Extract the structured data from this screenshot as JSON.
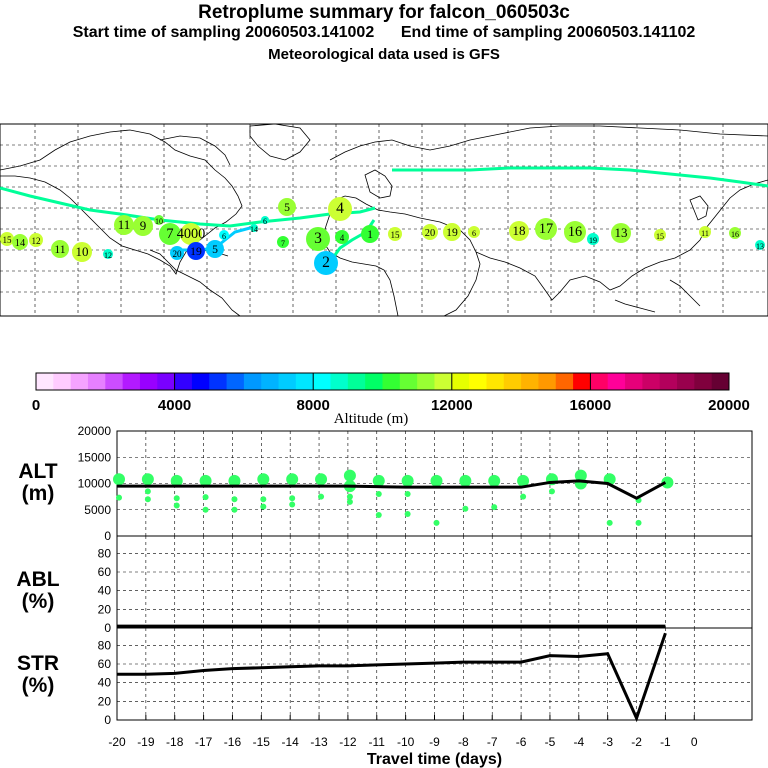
{
  "header": {
    "title": "Retroplume summary for falcon_060503c",
    "sampling": "Start time of sampling 20060503.141002      End time of sampling 20060503.141102",
    "met": "Meteorological data used is GFS"
  },
  "colorbar": {
    "label": "Altitude (m)",
    "ticks": [
      "0",
      "4000",
      "8000",
      "12000",
      "16000",
      "20000"
    ],
    "colors": [
      "#ffe6ff",
      "#ffccff",
      "#f5a3ff",
      "#e680ff",
      "#cc4dff",
      "#b31aff",
      "#9900ff",
      "#7a00ff",
      "#3300ff",
      "#0000ff",
      "#0033ff",
      "#0066ff",
      "#0099ff",
      "#00b3ff",
      "#00ccff",
      "#00e6ff",
      "#00ffff",
      "#00ffcc",
      "#00ff99",
      "#00ff66",
      "#33ff33",
      "#66ff33",
      "#99ff33",
      "#ccff33",
      "#e6ff00",
      "#ffff00",
      "#ffe600",
      "#ffcc00",
      "#ffb300",
      "#ff9900",
      "#ff6600",
      "#ff0000",
      "#ff0066",
      "#ff0099",
      "#e6007a",
      "#cc0066",
      "#b3005c",
      "#99004d",
      "#80003d",
      "#660033"
    ]
  },
  "chart_data": [
    {
      "type": "scatter",
      "panel": "ALT",
      "ylabel": "ALT (m)",
      "ylim": [
        0,
        20000
      ],
      "yticks": [
        "20000",
        "15000",
        "10000",
        "5000",
        "0"
      ],
      "line": {
        "x": [
          -20,
          -19,
          -18,
          -17,
          -16,
          -15,
          -14,
          -13,
          -12,
          -11,
          -10,
          -9,
          -8,
          -7,
          -6,
          -5,
          -4,
          -3,
          -2,
          -1
        ],
        "y": [
          9500,
          9500,
          9500,
          9500,
          9500,
          9500,
          9500,
          9500,
          9500,
          9400,
          9300,
          9300,
          9300,
          9300,
          9300,
          10200,
          10500,
          10000,
          7200,
          10200
        ]
      },
      "points": [
        {
          "x": -20,
          "y": 10800
        },
        {
          "x": -20,
          "y": 7300
        },
        {
          "x": -19,
          "y": 10800
        },
        {
          "x": -19,
          "y": 8500
        },
        {
          "x": -19,
          "y": 7000
        },
        {
          "x": -18,
          "y": 10500
        },
        {
          "x": -18,
          "y": 7200
        },
        {
          "x": -18,
          "y": 5800
        },
        {
          "x": -17,
          "y": 10500
        },
        {
          "x": -17,
          "y": 7400
        },
        {
          "x": -17,
          "y": 5000
        },
        {
          "x": -16,
          "y": 10500
        },
        {
          "x": -16,
          "y": 7000
        },
        {
          "x": -16,
          "y": 5000
        },
        {
          "x": -15,
          "y": 10800
        },
        {
          "x": -15,
          "y": 7000
        },
        {
          "x": -15,
          "y": 5600
        },
        {
          "x": -14,
          "y": 10800
        },
        {
          "x": -14,
          "y": 7200
        },
        {
          "x": -14,
          "y": 6000
        },
        {
          "x": -13,
          "y": 10800
        },
        {
          "x": -13,
          "y": 7500
        },
        {
          "x": -12,
          "y": 11500
        },
        {
          "x": -12,
          "y": 9500
        },
        {
          "x": -12,
          "y": 7500
        },
        {
          "x": -12,
          "y": 6500
        },
        {
          "x": -11,
          "y": 10500
        },
        {
          "x": -11,
          "y": 8000
        },
        {
          "x": -11,
          "y": 4000
        },
        {
          "x": -10,
          "y": 10500
        },
        {
          "x": -10,
          "y": 8000
        },
        {
          "x": -10,
          "y": 4200
        },
        {
          "x": -9,
          "y": 10500
        },
        {
          "x": -9,
          "y": 2500
        },
        {
          "x": -8,
          "y": 10500
        },
        {
          "x": -8,
          "y": 5200
        },
        {
          "x": -7,
          "y": 10500
        },
        {
          "x": -7,
          "y": 5500
        },
        {
          "x": -6,
          "y": 10500
        },
        {
          "x": -6,
          "y": 7500
        },
        {
          "x": -5,
          "y": 10800
        },
        {
          "x": -5,
          "y": 8500
        },
        {
          "x": -4,
          "y": 11500
        },
        {
          "x": -4,
          "y": 10000
        },
        {
          "x": -3,
          "y": 10800
        },
        {
          "x": -3,
          "y": 2500
        },
        {
          "x": -2,
          "y": 6800
        },
        {
          "x": -2,
          "y": 2500
        },
        {
          "x": -1,
          "y": 10200
        }
      ]
    },
    {
      "type": "line",
      "panel": "ABL",
      "ylabel": "ABL (%)",
      "ylim": [
        0,
        90
      ],
      "yticks": [
        "80",
        "60",
        "40",
        "20",
        "0"
      ],
      "x": [
        -20,
        -19,
        -18,
        -17,
        -16,
        -15,
        -14,
        -13,
        -12,
        -11,
        -10,
        -9,
        -8,
        -7,
        -6,
        -5,
        -4,
        -3,
        -2,
        -1
      ],
      "y": [
        2,
        2,
        2,
        2,
        2,
        2,
        2,
        2,
        2,
        2,
        2,
        2,
        2,
        2,
        2,
        2,
        2,
        2,
        2,
        2
      ]
    },
    {
      "type": "line",
      "panel": "STR",
      "ylabel": "STR (%)",
      "ylim": [
        0,
        90
      ],
      "yticks": [
        "80",
        "60",
        "40",
        "20",
        "0"
      ],
      "x": [
        -20,
        -19,
        -18,
        -17,
        -16,
        -15,
        -14,
        -13,
        -12,
        -11,
        -10,
        -9,
        -8,
        -7,
        -6,
        -5,
        -4,
        -3,
        -2,
        -1
      ],
      "y": [
        49,
        49,
        50,
        53,
        55,
        56,
        57,
        58,
        58,
        59,
        60,
        61,
        62,
        62,
        62,
        69,
        68,
        71,
        2,
        93
      ],
      "xlabel": "Travel time (days)",
      "xticks": [
        "-20",
        "-19",
        "-18",
        "-17",
        "-16",
        "-15",
        "-14",
        "-13",
        "-12",
        "-11",
        "-10",
        "-9",
        "-8",
        "-7",
        "-6",
        "-5",
        "-4",
        "-3",
        "-2",
        "-1",
        "0"
      ]
    }
  ],
  "map": {
    "labels": [
      {
        "t": "15",
        "x": 7,
        "y": 239,
        "r": 7,
        "c": "#ccff33"
      },
      {
        "t": "14",
        "x": 20,
        "y": 242,
        "r": 8,
        "c": "#99ff33"
      },
      {
        "t": "12",
        "x": 36,
        "y": 240,
        "r": 7,
        "c": "#ccff33"
      },
      {
        "t": "11",
        "x": 60,
        "y": 249,
        "r": 9,
        "c": "#99ff33"
      },
      {
        "t": "10",
        "x": 82,
        "y": 252,
        "r": 10,
        "c": "#ccff33"
      },
      {
        "t": "12",
        "x": 108,
        "y": 254,
        "r": 5,
        "c": "#00ffcc"
      },
      {
        "t": "11",
        "x": 124,
        "y": 225,
        "r": 10,
        "c": "#99ff33"
      },
      {
        "t": "9",
        "x": 143,
        "y": 226,
        "r": 10,
        "c": "#99ff33"
      },
      {
        "t": "10",
        "x": 159,
        "y": 220,
        "r": 5,
        "c": "#66ff33"
      },
      {
        "t": "7",
        "x": 170,
        "y": 234,
        "r": 11,
        "c": "#66ff33"
      },
      {
        "t": "4000",
        "x": 191,
        "y": 234,
        "r": 11,
        "c": "#ccff33"
      },
      {
        "t": "20",
        "x": 177,
        "y": 253,
        "r": 7,
        "c": "#00ccff"
      },
      {
        "t": "19",
        "x": 196,
        "y": 251,
        "r": 9,
        "c": "#0033ff"
      },
      {
        "t": "5",
        "x": 215,
        "y": 249,
        "r": 9,
        "c": "#00ccff"
      },
      {
        "t": "6",
        "x": 224,
        "y": 235,
        "r": 5,
        "c": "#00ffff"
      },
      {
        "t": "14",
        "x": 254,
        "y": 228,
        "r": 4,
        "c": "#00ffcc"
      },
      {
        "t": "6",
        "x": 265,
        "y": 220,
        "r": 4,
        "c": "#00ffcc"
      },
      {
        "t": "5",
        "x": 287,
        "y": 207,
        "r": 9,
        "c": "#99ff33"
      },
      {
        "t": "7",
        "x": 283,
        "y": 242,
        "r": 6,
        "c": "#33ff33"
      },
      {
        "t": "4",
        "x": 340,
        "y": 209,
        "r": 12,
        "c": "#ccff33"
      },
      {
        "t": "2",
        "x": 326,
        "y": 263,
        "r": 12,
        "c": "#00ccff"
      },
      {
        "t": "3",
        "x": 318,
        "y": 239,
        "r": 12,
        "c": "#66ff33"
      },
      {
        "t": "4",
        "x": 342,
        "y": 237,
        "r": 7,
        "c": "#33ff33"
      },
      {
        "t": "1",
        "x": 370,
        "y": 234,
        "r": 9,
        "c": "#33ff33"
      },
      {
        "t": "15",
        "x": 395,
        "y": 234,
        "r": 7,
        "c": "#ccff33"
      },
      {
        "t": "20",
        "x": 430,
        "y": 232,
        "r": 8,
        "c": "#ccff33"
      },
      {
        "t": "19",
        "x": 452,
        "y": 232,
        "r": 9,
        "c": "#ccff33"
      },
      {
        "t": "6",
        "x": 474,
        "y": 232,
        "r": 6,
        "c": "#ccff33"
      },
      {
        "t": "18",
        "x": 519,
        "y": 231,
        "r": 10,
        "c": "#ccff33"
      },
      {
        "t": "17",
        "x": 546,
        "y": 229,
        "r": 11,
        "c": "#99ff33"
      },
      {
        "t": "16",
        "x": 575,
        "y": 232,
        "r": 11,
        "c": "#99ff33"
      },
      {
        "t": "19",
        "x": 593,
        "y": 239,
        "r": 6,
        "c": "#00ffcc"
      },
      {
        "t": "13",
        "x": 621,
        "y": 233,
        "r": 10,
        "c": "#99ff33"
      },
      {
        "t": "15",
        "x": 660,
        "y": 235,
        "r": 6,
        "c": "#ccff33"
      },
      {
        "t": "11",
        "x": 705,
        "y": 232,
        "r": 6,
        "c": "#ccff33"
      },
      {
        "t": "16",
        "x": 735,
        "y": 233,
        "r": 6,
        "c": "#99ff33"
      },
      {
        "t": "13",
        "x": 760,
        "y": 245,
        "r": 5,
        "c": "#00ffcc"
      }
    ]
  }
}
